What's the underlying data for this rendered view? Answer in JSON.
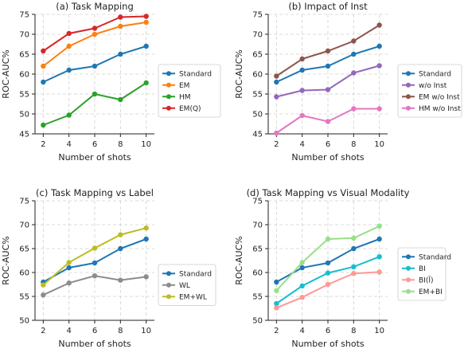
{
  "chart_data": [
    {
      "type": "line",
      "title": "(a) Task Mapping",
      "xlabel": "Number of shots",
      "ylabel": "ROC-AUC%",
      "x": [
        2,
        4,
        6,
        8,
        10
      ],
      "xticks": [
        "2",
        "4",
        "6",
        "8",
        "10"
      ],
      "ylim": [
        45,
        75
      ],
      "yticks": [
        "45",
        "50",
        "55",
        "60",
        "65",
        "70",
        "75"
      ],
      "grid": true,
      "legend": "center-right outside",
      "series": [
        {
          "name": "Standard",
          "color": "#1f77b4",
          "values": [
            58,
            61,
            62,
            65,
            67
          ]
        },
        {
          "name": "EM",
          "color": "#ff7f0e",
          "values": [
            62,
            67,
            70,
            72,
            73
          ]
        },
        {
          "name": "HM",
          "color": "#2ca02c",
          "values": [
            47.2,
            49.7,
            55,
            53.6,
            57.8
          ]
        },
        {
          "name": "EM(Q)",
          "color": "#d62728",
          "values": [
            65.8,
            70.2,
            71.5,
            74.3,
            74.5
          ]
        }
      ]
    },
    {
      "type": "line",
      "title": "(b) Impact of Inst",
      "xlabel": "Number of shots",
      "ylabel": "ROC-AUC%",
      "x": [
        2,
        4,
        6,
        8,
        10
      ],
      "xticks": [
        "2",
        "4",
        "6",
        "8",
        "10"
      ],
      "ylim": [
        45,
        75
      ],
      "yticks": [
        "45",
        "50",
        "55",
        "60",
        "65",
        "70",
        "75"
      ],
      "grid": true,
      "legend": "center-right outside",
      "series": [
        {
          "name": "Standard",
          "color": "#1f77b4",
          "values": [
            58,
            61,
            62,
            65,
            67
          ]
        },
        {
          "name": "w/o Inst",
          "color": "#9467bd",
          "values": [
            54.3,
            55.9,
            56.1,
            60.3,
            62.1
          ]
        },
        {
          "name": "EM w/o Inst",
          "color": "#8c564b",
          "values": [
            59.5,
            63.8,
            65.8,
            68.3,
            72.3
          ]
        },
        {
          "name": "HM w/o Inst",
          "color": "#e377c2",
          "values": [
            45.2,
            49.6,
            48.1,
            51.3,
            51.3
          ]
        }
      ]
    },
    {
      "type": "line",
      "title": "(c) Task Mapping vs Label",
      "xlabel": "Number of shots",
      "ylabel": "ROC-AUC%",
      "x": [
        2,
        4,
        6,
        8,
        10
      ],
      "xticks": [
        "2",
        "4",
        "6",
        "8",
        "10"
      ],
      "ylim": [
        50,
        75
      ],
      "yticks": [
        "50",
        "55",
        "60",
        "65",
        "70",
        "75"
      ],
      "grid": true,
      "legend": "center-right outside",
      "series": [
        {
          "name": "Standard",
          "color": "#1f77b4",
          "values": [
            58,
            61,
            62,
            65,
            67
          ]
        },
        {
          "name": "WL",
          "color": "#8c8c8c",
          "values": [
            55.3,
            57.8,
            59.3,
            58.4,
            59.1
          ]
        },
        {
          "name": "EM+WL",
          "color": "#bcbd22",
          "values": [
            57.4,
            62.1,
            65.1,
            67.9,
            69.3
          ]
        }
      ]
    },
    {
      "type": "line",
      "title": "(d) Task Mapping vs Visual Modality",
      "xlabel": "Number of shots",
      "ylabel": "ROC-AUC%",
      "x": [
        2,
        4,
        6,
        8,
        10
      ],
      "xticks": [
        "2",
        "4",
        "6",
        "8",
        "10"
      ],
      "ylim": [
        50,
        75
      ],
      "yticks": [
        "50",
        "55",
        "60",
        "65",
        "70",
        "75"
      ],
      "grid": true,
      "legend": "center-right outside",
      "series": [
        {
          "name": "Standard",
          "color": "#1f77b4",
          "values": [
            58,
            61,
            62,
            65,
            67
          ]
        },
        {
          "name": "BI",
          "color": "#17becf",
          "values": [
            53.5,
            57.2,
            59.9,
            61.2,
            63.3
          ]
        },
        {
          "name": "BI(Ī)",
          "color": "#ff9896",
          "values": [
            52.6,
            54.8,
            57.5,
            59.8,
            60.1
          ]
        },
        {
          "name": "EM+BI",
          "color": "#98df8a",
          "values": [
            56.2,
            62.1,
            67,
            67.2,
            69.7
          ]
        }
      ]
    }
  ]
}
